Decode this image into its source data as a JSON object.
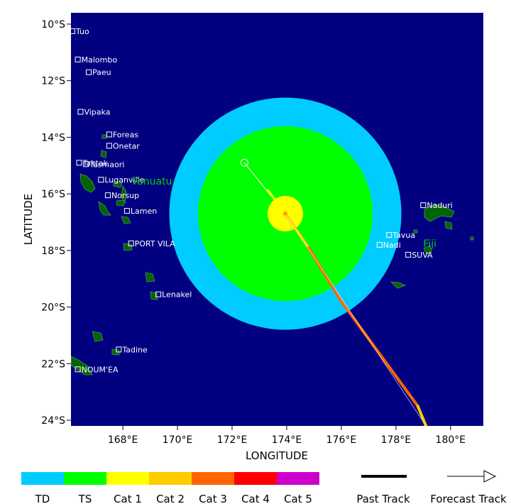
{
  "map": {
    "x_axis_title": "LONGITUDE",
    "y_axis_title": "LATITUDE",
    "lon_range": [
      166.1,
      181.2
    ],
    "lat_range": [
      -24.2,
      -9.6
    ],
    "lon_ticks": [
      {
        "value": 168,
        "label": "168°E"
      },
      {
        "value": 170,
        "label": "170°E"
      },
      {
        "value": 172,
        "label": "172°E"
      },
      {
        "value": 174,
        "label": "174°E"
      },
      {
        "value": 176,
        "label": "176°E"
      },
      {
        "value": 178,
        "label": "178°E"
      },
      {
        "value": 180,
        "label": "180°E"
      }
    ],
    "lat_ticks": [
      {
        "value": -10,
        "label": "10°S"
      },
      {
        "value": -12,
        "label": "12°S"
      },
      {
        "value": -14,
        "label": "14°S"
      },
      {
        "value": -16,
        "label": "16°S"
      },
      {
        "value": -18,
        "label": "18°S"
      },
      {
        "value": -20,
        "label": "20°S"
      },
      {
        "value": -22,
        "label": "22°S"
      },
      {
        "value": -24,
        "label": "24°S"
      }
    ],
    "colors": {
      "ocean": "#000080",
      "land": "#006400",
      "td": "#00ccff",
      "ts": "#00ff00",
      "cat1": "#ffff00",
      "cat2": "#ffcc00",
      "cat3": "#ff6600",
      "cat4": "#ff0000",
      "cat5": "#cc00cc",
      "country_label": "#00cc00"
    },
    "storm": {
      "center_lon": 173.95,
      "center_lat": -16.7,
      "td_radius_deg": 4.25,
      "ts_radius_deg": 3.2,
      "cat1_radius_deg": 0.65,
      "current_lon": 173.95,
      "current_lat": -16.7
    },
    "past_track": [
      {
        "lon": 172.45,
        "lat": -14.9
      },
      {
        "lon": 173.95,
        "lat": -16.7
      }
    ],
    "forecast_track": [
      {
        "lon": 173.95,
        "lat": -16.7,
        "cat": "cat1"
      },
      {
        "lon": 174.8,
        "lat": -17.9,
        "cat": "cat2"
      },
      {
        "lon": 176.0,
        "lat": -19.8,
        "cat": "cat3"
      },
      {
        "lon": 178.8,
        "lat": -23.5,
        "cat": "cat3"
      },
      {
        "lon": 179.1,
        "lat": -24.2,
        "cat": "cat2"
      }
    ],
    "places": [
      {
        "name": "Tuo",
        "lon": 166.15,
        "lat": -10.25
      },
      {
        "name": "Malombo",
        "lon": 166.35,
        "lat": -11.25
      },
      {
        "name": "Paeu",
        "lon": 166.75,
        "lat": -11.7
      },
      {
        "name": "Vipaka",
        "lon": 166.45,
        "lat": -13.1
      },
      {
        "name": "Foreas",
        "lon": 167.5,
        "lat": -13.9
      },
      {
        "name": "Onetar",
        "lon": 167.5,
        "lat": -14.3
      },
      {
        "name": "Taktak",
        "lon": 166.4,
        "lat": -14.9
      },
      {
        "name": "Tasmaori",
        "lon": 166.65,
        "lat": -14.95
      },
      {
        "name": "Luganville",
        "lon": 167.2,
        "lat": -15.5
      },
      {
        "name": "Norsup",
        "lon": 167.45,
        "lat": -16.05
      },
      {
        "name": "Lamen",
        "lon": 168.15,
        "lat": -16.6
      },
      {
        "name": "PORT VILA",
        "lon": 168.3,
        "lat": -17.75
      },
      {
        "name": "Lenakel",
        "lon": 169.3,
        "lat": -19.55
      },
      {
        "name": "Tadine",
        "lon": 167.85,
        "lat": -21.5
      },
      {
        "name": "NOUM'EA",
        "lon": 166.35,
        "lat": -22.2
      },
      {
        "name": "Naduri",
        "lon": 179.0,
        "lat": -16.4
      },
      {
        "name": "Tavua",
        "lon": 177.75,
        "lat": -17.45
      },
      {
        "name": "Nadi",
        "lon": 177.4,
        "lat": -17.8
      },
      {
        "name": "SUVA",
        "lon": 178.45,
        "lat": -18.15
      }
    ],
    "countries": [
      {
        "name": "Vanuatu",
        "lon": 168.3,
        "lat": -15.55
      },
      {
        "name": "Fiji",
        "lon": 179.0,
        "lat": -17.75
      }
    ]
  },
  "legend": {
    "categories": [
      {
        "label": "TD",
        "color": "#00ccff"
      },
      {
        "label": "TS",
        "color": "#00ff00"
      },
      {
        "label": "Cat 1",
        "color": "#ffff00"
      },
      {
        "label": "Cat 2",
        "color": "#ffcc00"
      },
      {
        "label": "Cat 3",
        "color": "#ff6600"
      },
      {
        "label": "Cat 4",
        "color": "#ff0000"
      },
      {
        "label": "Cat 5",
        "color": "#cc00cc"
      }
    ],
    "past_track_label": "Past Track",
    "forecast_track_label": "Forecast Track"
  }
}
